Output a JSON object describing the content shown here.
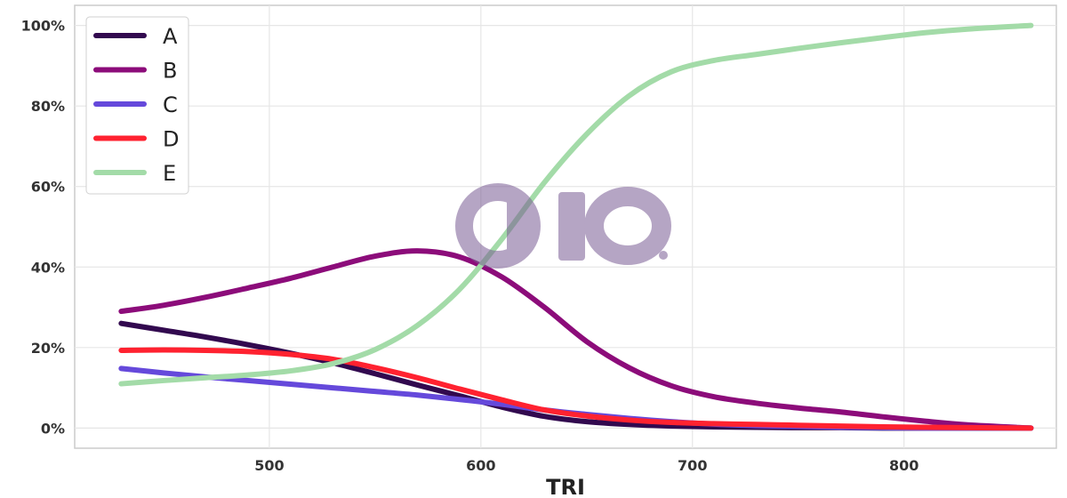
{
  "chart_data": {
    "type": "line",
    "xlabel": "TRI",
    "ylabel": "",
    "xlim": [
      408,
      872
    ],
    "ylim": [
      -0.05,
      1.05
    ],
    "x_ticks": [
      500,
      600,
      700,
      800
    ],
    "y_ticks": [
      0,
      0.2,
      0.4,
      0.6,
      0.8,
      1.0
    ],
    "y_tick_labels": [
      "0%",
      "20%",
      "40%",
      "60%",
      "80%",
      "100%"
    ],
    "grid": true,
    "legend_position": "top-left",
    "x": [
      430,
      450,
      470,
      490,
      510,
      530,
      550,
      570,
      590,
      610,
      630,
      650,
      670,
      690,
      710,
      730,
      750,
      770,
      790,
      810,
      830,
      860
    ],
    "series": [
      {
        "name": "A",
        "color": "#32094f",
        "values": [
          0.26,
          0.243,
          0.226,
          0.207,
          0.186,
          0.162,
          0.135,
          0.107,
          0.08,
          0.052,
          0.029,
          0.016,
          0.009,
          0.005,
          0.003,
          0.002,
          0.001,
          0.001,
          0.0,
          0.0,
          0.0,
          0.0
        ]
      },
      {
        "name": "B",
        "color": "#8c0c7a",
        "values": [
          0.29,
          0.305,
          0.325,
          0.348,
          0.372,
          0.4,
          0.427,
          0.44,
          0.425,
          0.375,
          0.3,
          0.215,
          0.15,
          0.105,
          0.078,
          0.062,
          0.05,
          0.04,
          0.028,
          0.017,
          0.008,
          0.0
        ]
      },
      {
        "name": "C",
        "color": "#6549db",
        "values": [
          0.148,
          0.137,
          0.127,
          0.118,
          0.109,
          0.1,
          0.091,
          0.082,
          0.071,
          0.059,
          0.045,
          0.034,
          0.024,
          0.016,
          0.01,
          0.006,
          0.004,
          0.002,
          0.001,
          0.0,
          0.0,
          0.0
        ]
      },
      {
        "name": "D",
        "color": "#ff2230",
        "values": [
          0.193,
          0.194,
          0.193,
          0.19,
          0.183,
          0.171,
          0.15,
          0.125,
          0.097,
          0.07,
          0.045,
          0.03,
          0.02,
          0.014,
          0.011,
          0.009,
          0.007,
          0.005,
          0.003,
          0.002,
          0.001,
          0.0
        ]
      },
      {
        "name": "E",
        "color": "#a3dba8",
        "values": [
          0.11,
          0.118,
          0.125,
          0.132,
          0.142,
          0.16,
          0.195,
          0.255,
          0.345,
          0.47,
          0.61,
          0.73,
          0.825,
          0.885,
          0.913,
          0.928,
          0.943,
          0.957,
          0.97,
          0.982,
          0.991,
          1.0
        ]
      }
    ]
  }
}
